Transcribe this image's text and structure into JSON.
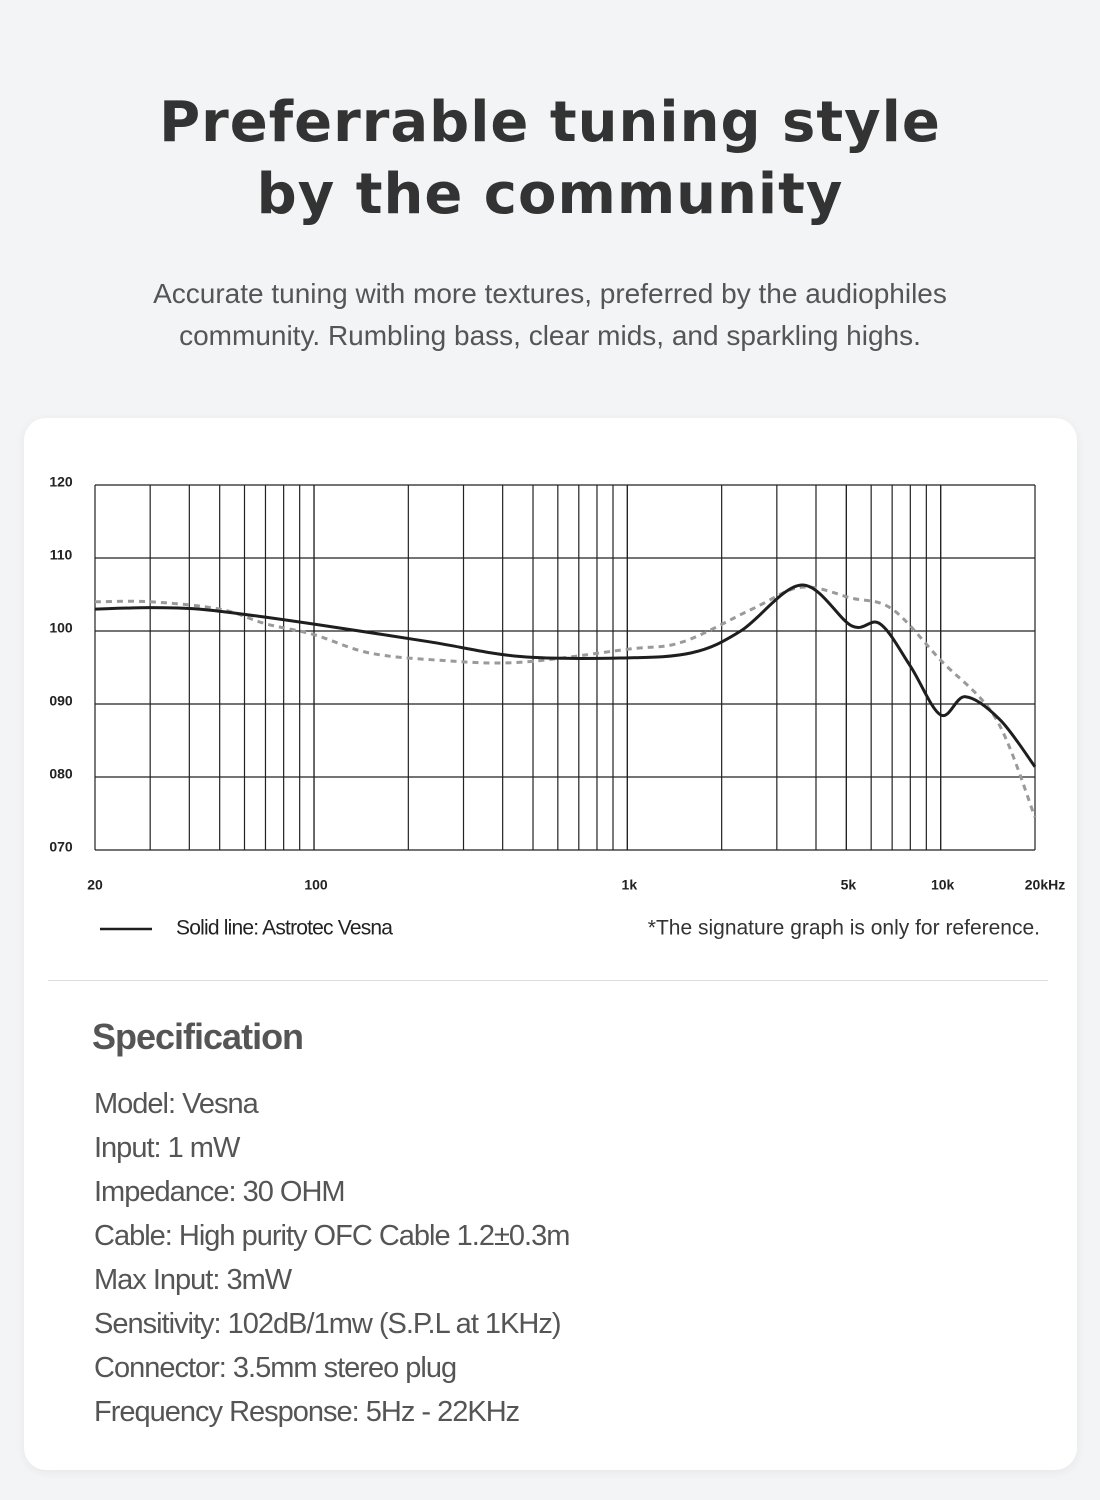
{
  "header": {
    "title_lines": [
      "Preferrable tuning style",
      "by the community"
    ],
    "subtitle_lines": [
      "Accurate tuning with more textures, preferred by the audiophiles",
      "community. Rumbling bass, clear mids, and sparkling highs."
    ]
  },
  "chart_data": {
    "type": "line",
    "xscale": "log",
    "grid": true,
    "xlim": [
      20,
      20000
    ],
    "xticks": [
      20,
      100,
      {
        "value": 1000,
        "label": "1k"
      },
      {
        "value": 5000,
        "label": "5k"
      },
      {
        "value": 10000,
        "label": "10k"
      },
      {
        "value": 20000,
        "label": "20kHz"
      }
    ],
    "ylim": [
      70,
      120
    ],
    "yticks": [
      {
        "value": 70,
        "label": "070"
      },
      {
        "value": 80,
        "label": "080"
      },
      {
        "value": 90,
        "label": "090"
      },
      100,
      110,
      120
    ],
    "series": [
      {
        "name": "Solid  line: Astrotec Vesna",
        "color": "#1e1e1e",
        "style": "solid",
        "x": [
          20,
          30,
          43,
          67,
          113,
          235,
          456,
          950,
          1600,
          2300,
          3600,
          5200,
          6400,
          8000,
          10000,
          12000,
          15500,
          20000
        ],
        "values": [
          103,
          103.2,
          103,
          102,
          100.6,
          98.5,
          96.5,
          96.3,
          97,
          100,
          106.3,
          100.7,
          101,
          95.2,
          88.5,
          91,
          87.8,
          81.4
        ]
      },
      {
        "color": "#9a9a9a",
        "style": "dashed",
        "x": [
          20,
          30,
          50,
          70,
          100,
          150,
          250,
          450,
          1000,
          1500,
          2500,
          3600,
          5200,
          7000,
          10000,
          15000,
          20000
        ],
        "values": [
          104,
          104,
          103,
          101,
          99.5,
          97,
          96,
          95.7,
          97.5,
          98.5,
          103,
          106,
          104.5,
          103,
          96,
          88,
          74.5
        ]
      }
    ],
    "note": "*The signature graph is only for reference."
  },
  "specification": {
    "title": "Specification",
    "items": [
      "Model: Vesna",
      "Input: 1 mW",
      "Impedance:  30 OHM",
      "Cable: High purity OFC Cable 1.2±0.3m",
      "Max Input: 3mW",
      "Sensitivity: 102dB/1mw (S.P.L at 1KHz)",
      "Connector: 3.5mm stereo plug",
      "Frequency Response: 5Hz - 22KHz"
    ]
  }
}
